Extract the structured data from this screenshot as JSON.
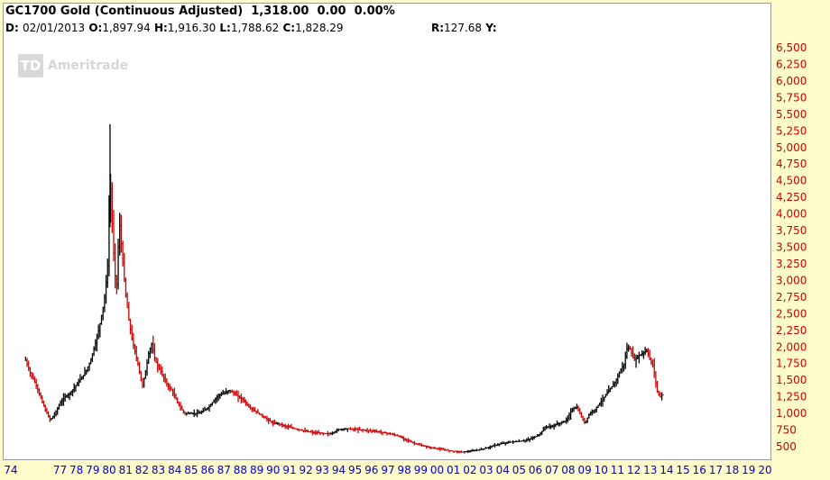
{
  "header": {
    "title": "GC1700 Gold (Continuous Adjusted)",
    "last": "1,318.00",
    "change": "0.00",
    "change_pct": "0.00%",
    "d_label": "D:",
    "date": "02/01/2013",
    "o_label": "O:",
    "open": "1,897.94",
    "h_label": "H:",
    "high": "1,916.30",
    "l_label": "L:",
    "low": "1,788.62",
    "c_label": "C:",
    "close": "1,828.29",
    "r_label": "R:",
    "r_value": "127.68",
    "y_label": "Y:"
  },
  "watermark": {
    "logo": "TD",
    "name": "Ameritrade"
  },
  "colors": {
    "background": "#fffccc",
    "axis_text_y": "#cc0000",
    "axis_text_x": "#0000cc",
    "up_bar": "#000000",
    "down_bar": "#cc0000"
  },
  "chart_data": {
    "type": "bar",
    "subtype": "ohlc-price",
    "title": "GC1700 Gold (Continuous Adjusted)",
    "y_scale": "linear",
    "ylim": [
      250,
      6750
    ],
    "y_ticks": [
      500,
      750,
      1000,
      1250,
      1500,
      1750,
      2000,
      2250,
      2500,
      2750,
      3000,
      3250,
      3500,
      3750,
      4000,
      4250,
      4500,
      4750,
      5000,
      5250,
      5500,
      5750,
      6000,
      6250,
      6500
    ],
    "y_tick_labels": [
      "500",
      "750",
      "1,000",
      "1,250",
      "1,500",
      "1,750",
      "2,000",
      "2,250",
      "2,500",
      "2,750",
      "3,000",
      "3,250",
      "3,500",
      "3,750",
      "4,000",
      "4,250",
      "4,500",
      "4,750",
      "5,000",
      "5,250",
      "5,500",
      "5,750",
      "6,000",
      "6,250",
      "6,500"
    ],
    "x_tick_labels": [
      "74",
      "77",
      "78",
      "79",
      "80",
      "81",
      "82",
      "83",
      "84",
      "85",
      "86",
      "87",
      "88",
      "89",
      "90",
      "91",
      "92",
      "93",
      "94",
      "95",
      "96",
      "97",
      "98",
      "99",
      "00",
      "01",
      "02",
      "03",
      "04",
      "05",
      "06",
      "07",
      "08",
      "09",
      "10",
      "11",
      "12",
      "13",
      "14",
      "15",
      "16",
      "17",
      "18",
      "19",
      "20"
    ],
    "x_tick_years": [
      1974,
      1977,
      1978,
      1979,
      1980,
      1981,
      1982,
      1983,
      1984,
      1985,
      1986,
      1987,
      1988,
      1989,
      1990,
      1991,
      1992,
      1993,
      1994,
      1995,
      1996,
      1997,
      1998,
      1999,
      2000,
      2001,
      2002,
      2003,
      2004,
      2005,
      2006,
      2007,
      2008,
      2009,
      2010,
      2011,
      2012,
      2013,
      2014,
      2015,
      2016,
      2017,
      2018,
      2019,
      2020
    ],
    "x": [
      1974.9,
      1975.2,
      1975.5,
      1975.8,
      1976.1,
      1976.4,
      1976.7,
      1977.0,
      1977.3,
      1977.6,
      1977.9,
      1978.2,
      1978.5,
      1978.8,
      1979.1,
      1979.4,
      1979.7,
      1979.9,
      1980.05,
      1980.15,
      1980.25,
      1980.35,
      1980.45,
      1980.55,
      1980.65,
      1980.75,
      1980.85,
      1981.0,
      1981.2,
      1981.4,
      1981.6,
      1981.8,
      1982.0,
      1982.2,
      1982.4,
      1982.6,
      1982.8,
      1983.0,
      1983.2,
      1983.4,
      1983.6,
      1983.8,
      1984.0,
      1984.3,
      1984.6,
      1984.9,
      1985.2,
      1985.5,
      1985.8,
      1986.1,
      1986.4,
      1986.7,
      1987.0,
      1987.3,
      1987.6,
      1987.9,
      1988.2,
      1988.5,
      1988.8,
      1989.1,
      1989.4,
      1989.7,
      1990.0,
      1990.3,
      1990.6,
      1991.0,
      1991.5,
      1992.0,
      1992.5,
      1993.0,
      1993.5,
      1994.0,
      1994.5,
      1995.0,
      1995.5,
      1996.0,
      1996.5,
      1997.0,
      1997.5,
      1998.0,
      1998.5,
      1999.0,
      1999.5,
      2000.0,
      2000.5,
      2001.0,
      2001.5,
      2002.0,
      2002.5,
      2003.0,
      2003.5,
      2004.0,
      2004.5,
      2005.0,
      2005.5,
      2006.0,
      2006.3,
      2006.6,
      2007.0,
      2007.3,
      2007.6,
      2007.9,
      2008.2,
      2008.5,
      2008.8,
      2009.0,
      2009.3,
      2009.6,
      2009.9,
      2010.2,
      2010.5,
      2010.8,
      2011.1,
      2011.4,
      2011.6,
      2011.8,
      2012.0,
      2012.2,
      2012.5,
      2012.8,
      2013.0,
      2013.2,
      2013.4,
      2013.6,
      2013.8
    ],
    "values": [
      1800,
      1600,
      1450,
      1250,
      1050,
      900,
      1000,
      1150,
      1250,
      1300,
      1400,
      1500,
      1600,
      1750,
      2000,
      2300,
      2700,
      3200,
      4600,
      4000,
      3500,
      3100,
      2900,
      3500,
      3850,
      3500,
      3200,
      2800,
      2400,
      2100,
      1900,
      1700,
      1400,
      1600,
      1900,
      2050,
      1800,
      1700,
      1600,
      1500,
      1400,
      1350,
      1250,
      1100,
      1000,
      1000,
      1000,
      1000,
      1050,
      1100,
      1200,
      1280,
      1300,
      1350,
      1300,
      1250,
      1200,
      1100,
      1050,
      1000,
      950,
      900,
      850,
      850,
      820,
      790,
      760,
      730,
      710,
      700,
      690,
      760,
      770,
      760,
      750,
      740,
      720,
      700,
      670,
      620,
      560,
      520,
      490,
      470,
      450,
      430,
      420,
      430,
      450,
      480,
      520,
      550,
      570,
      580,
      600,
      650,
      700,
      800,
      800,
      840,
      860,
      900,
      1050,
      1100,
      950,
      850,
      1000,
      1050,
      1150,
      1250,
      1350,
      1450,
      1600,
      1750,
      2000,
      1950,
      1800,
      1850,
      1900,
      1950,
      1800,
      1700,
      1350,
      1250,
      1300
    ],
    "peak_high": {
      "x": 1980.05,
      "y": 5350
    }
  }
}
